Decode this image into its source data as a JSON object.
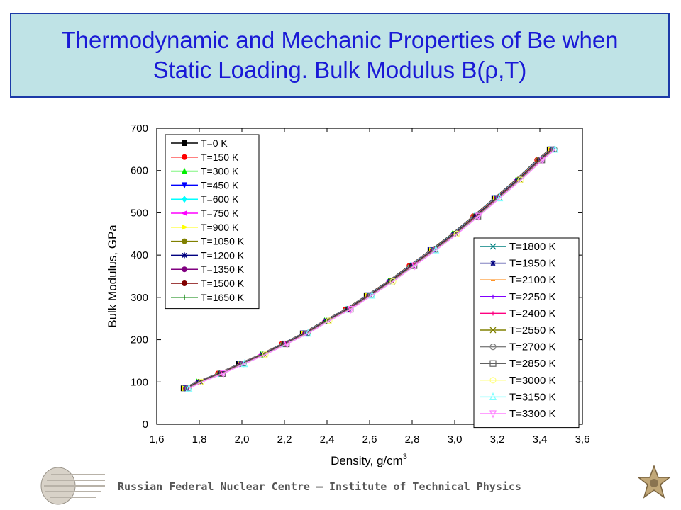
{
  "title": {
    "line1": "Thermodynamic and Mechanic Properties of Be when",
    "line2": "Static Loading. Bulk Modulus B(ρ,T)"
  },
  "footer": {
    "text": "Russian Federal Nuclear Centre – Institute of Technical Physics"
  },
  "chart_data": {
    "type": "line",
    "xlabel": "Density, g/cm",
    "xlabel_superscript": "3",
    "ylabel": "Bulk Modulus, GPa",
    "xlim": [
      1.6,
      3.6
    ],
    "ylim": [
      0,
      700
    ],
    "x_ticks": [
      "1,6",
      "1,8",
      "2,0",
      "2,2",
      "2,4",
      "2,6",
      "2,8",
      "3,0",
      "3,2",
      "3,4",
      "3,6"
    ],
    "y_ticks": [
      "0",
      "100",
      "200",
      "300",
      "400",
      "500",
      "600",
      "700"
    ],
    "grid": false,
    "legend_left_placement": "top-left",
    "legend_right_placement": "bottom-right",
    "x": [
      1.74,
      1.8,
      1.9,
      2.0,
      2.1,
      2.2,
      2.3,
      2.4,
      2.5,
      2.6,
      2.7,
      2.8,
      2.9,
      3.0,
      3.1,
      3.2,
      3.3,
      3.4,
      3.46
    ],
    "y": [
      85,
      100,
      120,
      143,
      165,
      190,
      215,
      245,
      272,
      305,
      338,
      375,
      412,
      450,
      492,
      535,
      578,
      625,
      650
    ],
    "series": [
      {
        "name": "T=0 K",
        "color": "#000000",
        "marker": "square"
      },
      {
        "name": "T=150 K",
        "color": "#ff0000",
        "marker": "circle"
      },
      {
        "name": "T=300 K",
        "color": "#00ee00",
        "marker": "triangle-up"
      },
      {
        "name": "T=450 K",
        "color": "#0000ff",
        "marker": "triangle-down"
      },
      {
        "name": "T=600 K",
        "color": "#00ffff",
        "marker": "diamond"
      },
      {
        "name": "T=750 K",
        "color": "#ff00ff",
        "marker": "triangle-left"
      },
      {
        "name": "T=900 K",
        "color": "#ffff00",
        "marker": "triangle-right"
      },
      {
        "name": "T=1050 K",
        "color": "#808000",
        "marker": "hexagon"
      },
      {
        "name": "T=1200 K",
        "color": "#000080",
        "marker": "star"
      },
      {
        "name": "T=1350 K",
        "color": "#800080",
        "marker": "pentagon"
      },
      {
        "name": "T=1500 K",
        "color": "#800000",
        "marker": "circle"
      },
      {
        "name": "T=1650 K",
        "color": "#008000",
        "marker": "plus"
      },
      {
        "name": "T=1800 K",
        "color": "#008080",
        "marker": "x"
      },
      {
        "name": "T=1950 K",
        "color": "#000080",
        "marker": "asterisk"
      },
      {
        "name": "T=2100 K",
        "color": "#ff8000",
        "marker": "dash"
      },
      {
        "name": "T=2250 K",
        "color": "#8000ff",
        "marker": "vbar"
      },
      {
        "name": "T=2400 K",
        "color": "#ff0080",
        "marker": "vbar"
      },
      {
        "name": "T=2550 K",
        "color": "#808000",
        "marker": "boxed-x"
      },
      {
        "name": "T=2700 K",
        "color": "#808080",
        "marker": "circle-x"
      },
      {
        "name": "T=2850 K",
        "color": "#606060",
        "marker": "square-open"
      },
      {
        "name": "T=3000 K",
        "color": "#ffff80",
        "marker": "circle-open"
      },
      {
        "name": "T=3150 K",
        "color": "#80ffff",
        "marker": "triangle-open"
      },
      {
        "name": "T=3300 K",
        "color": "#ff80ff",
        "marker": "triangle-down-open"
      }
    ]
  }
}
